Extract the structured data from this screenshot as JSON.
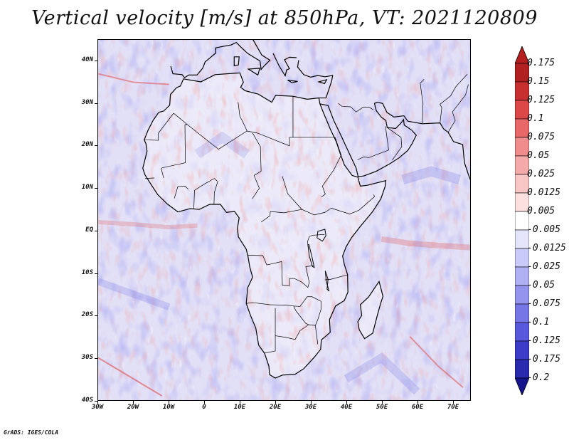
{
  "title": "Vertical velocity [m/s] at 850hPa, VT: 2021120809",
  "map": {
    "variable": "Vertical velocity",
    "units": "m/s",
    "level": "850hPa",
    "valid_time": "2021120809",
    "lon_range": [
      -30,
      75
    ],
    "lat_range": [
      -40,
      45
    ]
  },
  "axes": {
    "y_ticks": [
      {
        "value": 40,
        "label": "40N"
      },
      {
        "value": 30,
        "label": "30N"
      },
      {
        "value": 20,
        "label": "20N"
      },
      {
        "value": 10,
        "label": "10N"
      },
      {
        "value": 0,
        "label": "EQ"
      },
      {
        "value": -10,
        "label": "10S"
      },
      {
        "value": -20,
        "label": "20S"
      },
      {
        "value": -30,
        "label": "30S"
      },
      {
        "value": -40,
        "label": "40S"
      }
    ],
    "x_ticks": [
      {
        "value": -30,
        "label": "30W"
      },
      {
        "value": -20,
        "label": "20W"
      },
      {
        "value": -10,
        "label": "10W"
      },
      {
        "value": 0,
        "label": "0"
      },
      {
        "value": 10,
        "label": "10E"
      },
      {
        "value": 20,
        "label": "20E"
      },
      {
        "value": 30,
        "label": "30E"
      },
      {
        "value": 40,
        "label": "40E"
      },
      {
        "value": 50,
        "label": "50E"
      },
      {
        "value": 60,
        "label": "60E"
      },
      {
        "value": 70,
        "label": "70E"
      }
    ]
  },
  "colorbar": {
    "levels": [
      {
        "label": "0.175",
        "color": "#b02020"
      },
      {
        "label": "0.15",
        "color": "#c83030"
      },
      {
        "label": "0.125",
        "color": "#dc4848"
      },
      {
        "label": "0.1",
        "color": "#e86868"
      },
      {
        "label": "0.075",
        "color": "#f08c8c"
      },
      {
        "label": "0.05",
        "color": "#f5aaaa"
      },
      {
        "label": "0.025",
        "color": "#f9c6c6"
      },
      {
        "label": "0.0125",
        "color": "#fce0e0"
      },
      {
        "label": "0.005",
        "color": "#ffffff"
      },
      {
        "label": "-0.005",
        "color": "#e4e4fb"
      },
      {
        "label": "-0.0125",
        "color": "#cacaf8"
      },
      {
        "label": "-0.025",
        "color": "#b0b0f4"
      },
      {
        "label": "-0.05",
        "color": "#9494ee"
      },
      {
        "label": "-0.075",
        "color": "#7676e6"
      },
      {
        "label": "-0.1",
        "color": "#5858dc"
      },
      {
        "label": "-0.125",
        "color": "#3c3cc8"
      },
      {
        "label": "-0.175",
        "color": "#2a2aae"
      },
      {
        "label": "-0.2",
        "color": "#1a1a96"
      }
    ],
    "top_color": "#b41e1e",
    "bottom_color": "#14148c"
  },
  "colors": {
    "positive": "#e05050",
    "negative": "#5050e0",
    "coast": "#000000",
    "background": "#eceaf6"
  },
  "credit": "GrADS: IGES/COLA"
}
